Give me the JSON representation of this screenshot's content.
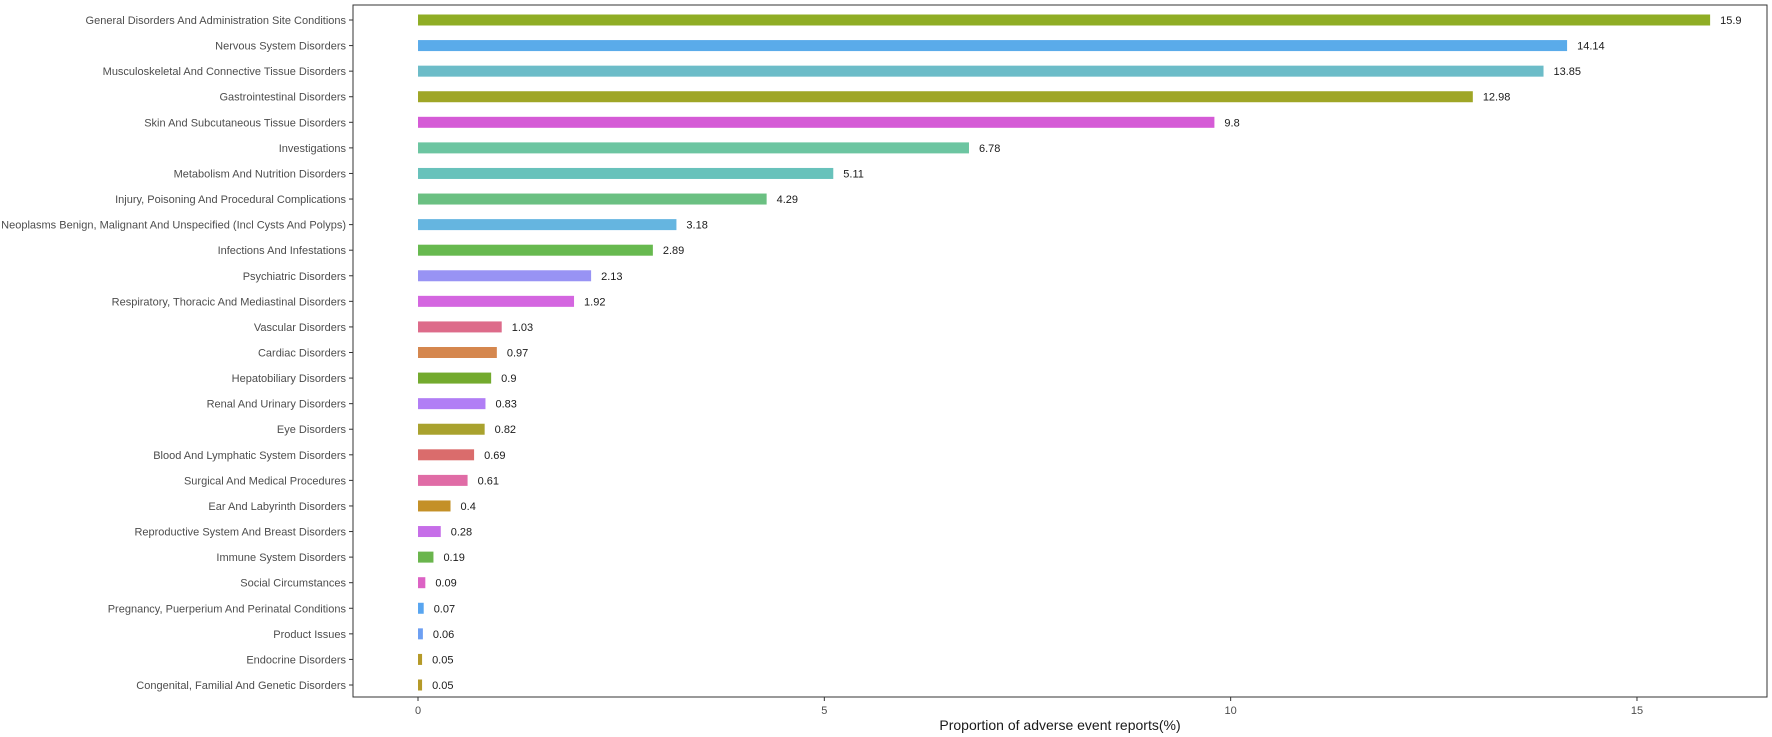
{
  "chart_data": {
    "type": "bar",
    "orientation": "horizontal",
    "xlabel": "Proportion of adverse event reports(%)",
    "ylabel": "",
    "xlim": [
      -0.8,
      16.6
    ],
    "xticks": [
      0,
      5,
      10,
      15
    ],
    "grid": false,
    "legend": "none",
    "categories": [
      "General Disorders And Administration Site Conditions",
      "Nervous System Disorders",
      "Musculoskeletal And Connective Tissue Disorders",
      "Gastrointestinal Disorders",
      "Skin And Subcutaneous Tissue Disorders",
      "Investigations",
      "Metabolism And Nutrition Disorders",
      "Injury, Poisoning And Procedural Complications",
      "Neoplasms Benign, Malignant And Unspecified (Incl Cysts And Polyps)",
      "Infections And Infestations",
      "Psychiatric Disorders",
      "Respiratory, Thoracic And Mediastinal Disorders",
      "Vascular Disorders",
      "Cardiac Disorders",
      "Hepatobiliary Disorders",
      "Renal And Urinary Disorders",
      "Eye Disorders",
      "Blood And Lymphatic System Disorders",
      "Surgical And Medical Procedures",
      "Ear And Labyrinth Disorders",
      "Reproductive System And Breast Disorders",
      "Immune System Disorders",
      "Social Circumstances",
      "Pregnancy, Puerperium And Perinatal Conditions",
      "Product Issues",
      "Endocrine Disorders",
      "Congenital, Familial And Genetic Disorders"
    ],
    "values": [
      15.9,
      14.14,
      13.85,
      12.98,
      9.8,
      6.78,
      5.11,
      4.29,
      3.18,
      2.89,
      2.13,
      1.92,
      1.03,
      0.97,
      0.9,
      0.83,
      0.82,
      0.69,
      0.61,
      0.4,
      0.28,
      0.19,
      0.09,
      0.07,
      0.06,
      0.05,
      0.05
    ],
    "value_labels": [
      "15.9",
      "14.14",
      "13.85",
      "12.98",
      "9.8",
      "6.78",
      "5.11",
      "4.29",
      "3.18",
      "2.89",
      "2.13",
      "1.92",
      "1.03",
      "0.97",
      "0.9",
      "0.83",
      "0.82",
      "0.69",
      "0.61",
      "0.4",
      "0.28",
      "0.19",
      "0.09",
      "0.07",
      "0.06",
      "0.05",
      "0.05"
    ],
    "colors": [
      "#8fad25",
      "#5aabea",
      "#6cbcc8",
      "#9fa626",
      "#d55bd6",
      "#6cc5a1",
      "#68c2bb",
      "#6bc082",
      "#65b5e0",
      "#67b94f",
      "#9893f4",
      "#d466e0",
      "#dd6b8a",
      "#d5874e",
      "#73aa2e",
      "#b17ef5",
      "#a9a22e",
      "#da6c6c",
      "#e06ca6",
      "#c49027",
      "#c66ee8",
      "#6ab54d",
      "#dc62c4",
      "#58a5f0",
      "#6d9ff2",
      "#b59a28",
      "#b59a28"
    ]
  }
}
